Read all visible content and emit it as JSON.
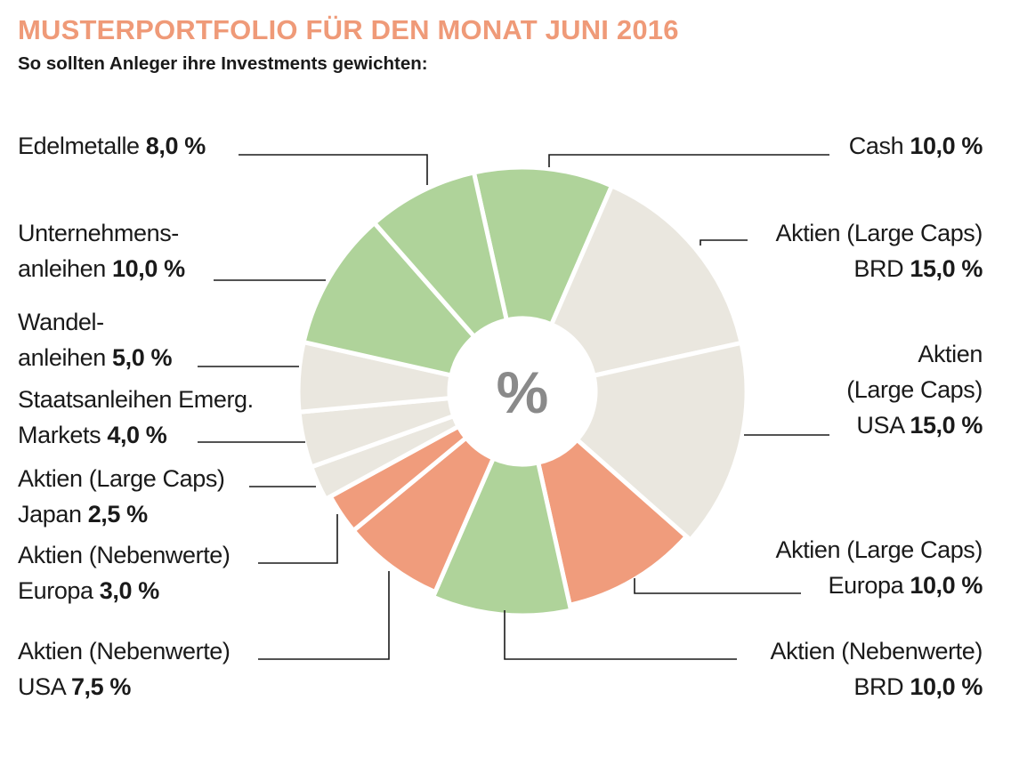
{
  "title": "MUSTERPORTFOLIO FÜR DEN MONAT JUNI 2016",
  "subtitle": "So sollten Anleger ihre Investments gewichten:",
  "center_symbol": "%",
  "colors": {
    "green": "#afd39a",
    "grey": "#eae7df",
    "orange": "#f09c7c",
    "title": "#ef9a78"
  },
  "chart_data": {
    "type": "pie",
    "donut": true,
    "title": "MUSTERPORTFOLIO FÜR DEN MONAT JUNI 2016",
    "subtitle": "So sollten Anleger ihre Investments gewichten:",
    "unit": "%",
    "slices": [
      {
        "name": "Cash",
        "value": 10.0,
        "color": "green",
        "label_lines": [
          "Cash"
        ],
        "value_text": "10,0 %"
      },
      {
        "name": "Aktien (Large Caps) BRD",
        "value": 15.0,
        "color": "grey",
        "label_lines": [
          "Aktien (Large Caps)",
          "BRD"
        ],
        "value_text": "15,0 %"
      },
      {
        "name": "Aktien (Large Caps) USA",
        "value": 15.0,
        "color": "grey",
        "label_lines": [
          "Aktien",
          "(Large Caps)",
          "USA"
        ],
        "value_text": "15,0 %"
      },
      {
        "name": "Aktien (Large Caps) Europa",
        "value": 10.0,
        "color": "orange",
        "label_lines": [
          "Aktien (Large Caps)",
          "Europa"
        ],
        "value_text": "10,0 %"
      },
      {
        "name": "Aktien (Nebenwerte) BRD",
        "value": 10.0,
        "color": "green",
        "label_lines": [
          "Aktien (Nebenwerte)",
          "BRD"
        ],
        "value_text": "10,0 %"
      },
      {
        "name": "Aktien (Nebenwerte) USA",
        "value": 7.5,
        "color": "orange",
        "label_lines": [
          "Aktien (Nebenwerte)",
          "USA"
        ],
        "value_text": "7,5 %"
      },
      {
        "name": "Aktien (Nebenwerte) Europa",
        "value": 3.0,
        "color": "orange",
        "label_lines": [
          "Aktien (Nebenwerte)",
          "Europa"
        ],
        "value_text": "3,0 %"
      },
      {
        "name": "Aktien (Large Caps) Japan",
        "value": 2.5,
        "color": "grey",
        "label_lines": [
          "Aktien (Large Caps)",
          "Japan"
        ],
        "value_text": "2,5 %"
      },
      {
        "name": "Staatsanleihen Emerg. Markets",
        "value": 4.0,
        "color": "grey",
        "label_lines": [
          "Staatsanleihen Emerg.",
          "Markets"
        ],
        "value_text": "4,0 %"
      },
      {
        "name": "Wandelanleihen",
        "value": 5.0,
        "color": "grey",
        "label_lines": [
          "Wandel-",
          "anleihen"
        ],
        "value_text": "5,0 %"
      },
      {
        "name": "Unternehmensanleihen",
        "value": 10.0,
        "color": "green",
        "label_lines": [
          "Unternehmens-",
          "anleihen"
        ],
        "value_text": "10,0 %"
      },
      {
        "name": "Edelmetalle",
        "value": 8.0,
        "color": "green",
        "label_lines": [
          "Edelmetalle"
        ],
        "value_text": "8,0 %"
      }
    ]
  }
}
